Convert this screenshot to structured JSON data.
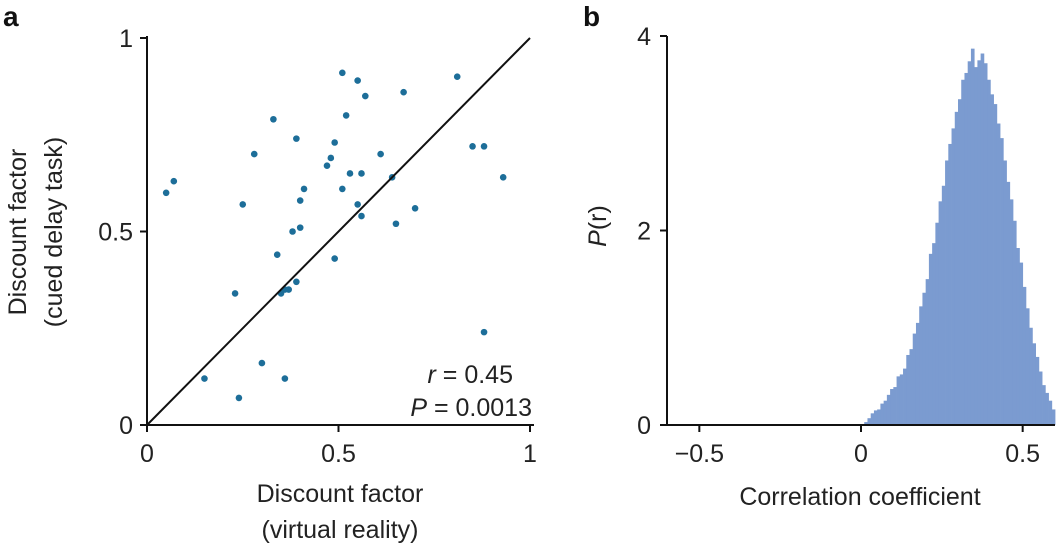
{
  "colors": {
    "scatter_point": "#1d6e99",
    "histogram_fill": "#7b9bd0",
    "axis": "#111111",
    "identity_line": "#111111"
  },
  "chart_data": [
    {
      "panel": "a",
      "type": "scatter",
      "xlabel_line1": "Discount factor",
      "xlabel_line2": "(virtual reality)",
      "ylabel_line1": "Discount factor",
      "ylabel_line2": "(cued delay task)",
      "xlim": [
        0,
        1
      ],
      "ylim": [
        0,
        1
      ],
      "xticks": [
        0,
        0.5,
        1
      ],
      "xtick_labels": [
        "0",
        "0.5",
        "1"
      ],
      "yticks": [
        0,
        0.5,
        1
      ],
      "ytick_labels": [
        "0",
        "0.5",
        "1"
      ],
      "identity_line": true,
      "annotation": {
        "r_symbol": "r",
        "r_text": " = 0.45",
        "p_symbol": "P",
        "p_text": " = 0.0013"
      },
      "points": [
        {
          "x": 0.05,
          "y": 0.6
        },
        {
          "x": 0.07,
          "y": 0.63
        },
        {
          "x": 0.15,
          "y": 0.12
        },
        {
          "x": 0.23,
          "y": 0.34
        },
        {
          "x": 0.24,
          "y": 0.07
        },
        {
          "x": 0.25,
          "y": 0.57
        },
        {
          "x": 0.28,
          "y": 0.7
        },
        {
          "x": 0.3,
          "y": 0.16
        },
        {
          "x": 0.33,
          "y": 0.79
        },
        {
          "x": 0.34,
          "y": 0.44
        },
        {
          "x": 0.35,
          "y": 0.34
        },
        {
          "x": 0.36,
          "y": 0.12
        },
        {
          "x": 0.36,
          "y": 0.35
        },
        {
          "x": 0.37,
          "y": 0.35
        },
        {
          "x": 0.38,
          "y": 0.5
        },
        {
          "x": 0.39,
          "y": 0.37
        },
        {
          "x": 0.39,
          "y": 0.74
        },
        {
          "x": 0.4,
          "y": 0.51
        },
        {
          "x": 0.4,
          "y": 0.58
        },
        {
          "x": 0.41,
          "y": 0.61
        },
        {
          "x": 0.47,
          "y": 0.67
        },
        {
          "x": 0.48,
          "y": 0.69
        },
        {
          "x": 0.49,
          "y": 0.73
        },
        {
          "x": 0.49,
          "y": 0.43
        },
        {
          "x": 0.51,
          "y": 0.61
        },
        {
          "x": 0.51,
          "y": 0.91
        },
        {
          "x": 0.52,
          "y": 0.8
        },
        {
          "x": 0.53,
          "y": 0.65
        },
        {
          "x": 0.55,
          "y": 0.89
        },
        {
          "x": 0.55,
          "y": 0.57
        },
        {
          "x": 0.56,
          "y": 0.65
        },
        {
          "x": 0.56,
          "y": 0.54
        },
        {
          "x": 0.57,
          "y": 0.85
        },
        {
          "x": 0.61,
          "y": 0.7
        },
        {
          "x": 0.64,
          "y": 0.64
        },
        {
          "x": 0.65,
          "y": 0.52
        },
        {
          "x": 0.67,
          "y": 0.86
        },
        {
          "x": 0.7,
          "y": 0.56
        },
        {
          "x": 0.81,
          "y": 0.9
        },
        {
          "x": 0.85,
          "y": 0.72
        },
        {
          "x": 0.88,
          "y": 0.72
        },
        {
          "x": 0.88,
          "y": 0.24
        },
        {
          "x": 0.93,
          "y": 0.64
        }
      ]
    },
    {
      "panel": "b",
      "type": "bar",
      "subtype": "histogram",
      "xlabel": "Correlation coefficient",
      "ylabel_symbol": "P",
      "ylabel_arg": "(r)",
      "xlim": [
        -0.6,
        0.6
      ],
      "ylim": [
        0,
        4
      ],
      "xticks": [
        -0.5,
        0,
        0.5
      ],
      "xtick_labels": [
        "−0.5",
        "0",
        "0.5"
      ],
      "yticks": [
        0,
        2,
        4
      ],
      "ytick_labels": [
        "0",
        "2",
        "4"
      ],
      "bin_width": 0.01,
      "bin_start": 0.0,
      "values": [
        0.01,
        0.03,
        0.07,
        0.12,
        0.15,
        0.16,
        0.22,
        0.25,
        0.31,
        0.37,
        0.39,
        0.5,
        0.52,
        0.58,
        0.72,
        0.78,
        0.94,
        1.05,
        1.22,
        1.36,
        1.5,
        1.76,
        1.87,
        2.08,
        2.3,
        2.46,
        2.72,
        2.89,
        3.05,
        3.22,
        3.35,
        3.55,
        3.62,
        3.74,
        3.87,
        3.68,
        3.75,
        3.82,
        3.72,
        3.55,
        3.4,
        3.3,
        3.1,
        2.95,
        2.72,
        2.5,
        2.32,
        2.1,
        1.82,
        1.67,
        1.42,
        1.2,
        1.0,
        0.84,
        0.7,
        0.55,
        0.41,
        0.33,
        0.25,
        0.16
      ]
    }
  ]
}
